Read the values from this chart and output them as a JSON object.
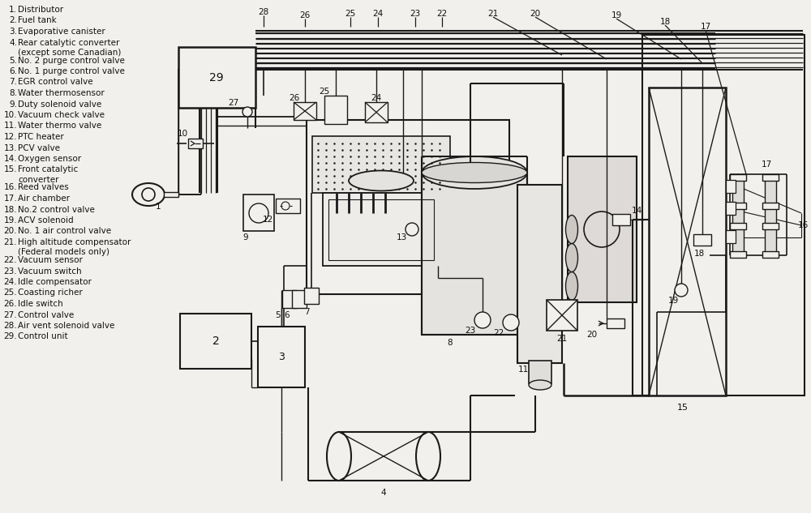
{
  "bg_color": "#f2f0ed",
  "line_color": "#1a1a1a",
  "legend": [
    [
      1,
      "Distributor"
    ],
    [
      2,
      "Fuel tank"
    ],
    [
      3,
      "Evaporative canister"
    ],
    [
      4,
      "Rear catalytic converter\n(except some Canadian)"
    ],
    [
      5,
      "No. 2 purge control valve"
    ],
    [
      6,
      "No. 1 purge control valve"
    ],
    [
      7,
      "EGR control valve"
    ],
    [
      8,
      "Water thermosensor"
    ],
    [
      9,
      "Duty solenoid valve"
    ],
    [
      10,
      "Vacuum check valve"
    ],
    [
      11,
      "Water thermo valve"
    ],
    [
      12,
      "PTC heater"
    ],
    [
      13,
      "PCV valve"
    ],
    [
      14,
      "Oxygen sensor"
    ],
    [
      15,
      "Front catalytic\nconverter"
    ],
    [
      16,
      "Reed valves"
    ],
    [
      17,
      "Air chamber"
    ],
    [
      18,
      "No.2 control valve"
    ],
    [
      19,
      "ACV solenoid"
    ],
    [
      20,
      "No. 1 air control valve"
    ],
    [
      21,
      "High altitude compensator\n(Federal models only)"
    ],
    [
      22,
      "Vacuum sensor"
    ],
    [
      23,
      "Vacuum switch"
    ],
    [
      24,
      "Idle compensator"
    ],
    [
      25,
      "Coasting richer"
    ],
    [
      26,
      "Idle switch"
    ],
    [
      27,
      "Control valve"
    ],
    [
      28,
      "Air vent solenoid valve"
    ],
    [
      29,
      "Control unit"
    ]
  ]
}
